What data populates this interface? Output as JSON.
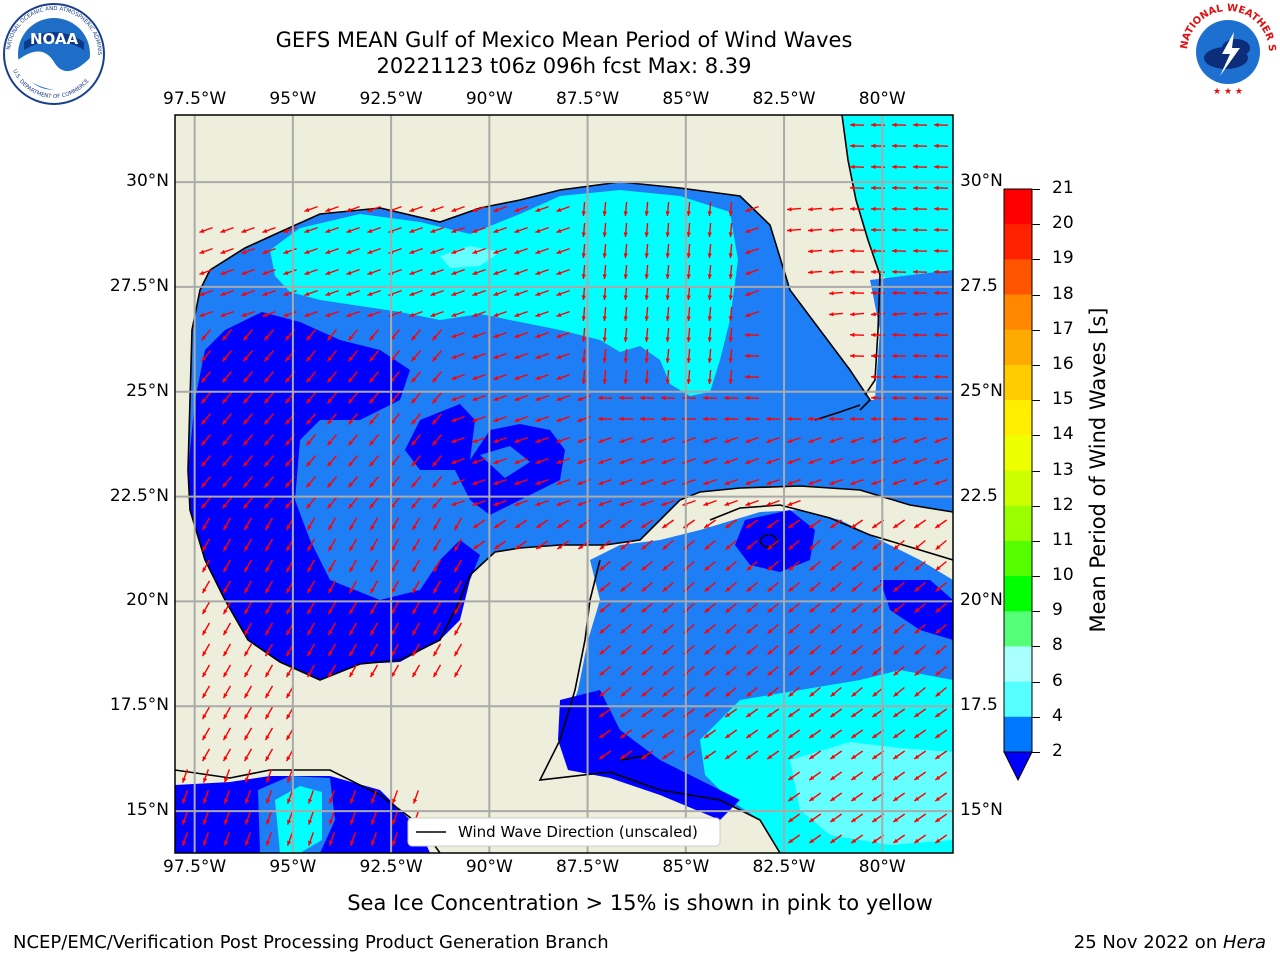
{
  "header": {
    "title_line1": "GEFS MEAN Gulf of Mexico Mean Period of Wind Waves",
    "title_line2": "20221123 t06z 096h fcst   Max: 8.39",
    "logo_left": "NOAA",
    "logo_left_ring": "NATIONAL OCEANIC AND ATMOSPHERIC ADMINISTRATION",
    "logo_left_ring_bottom": "U.S. DEPARTMENT OF COMMERCE",
    "logo_right_ring": "NATIONAL WEATHER SERVICE"
  },
  "map": {
    "lon_labels": [
      "97.5°W",
      "95°W",
      "92.5°W",
      "90°W",
      "87.5°W",
      "85°W",
      "82.5°W",
      "80°W"
    ],
    "lat_labels": [
      "30°N",
      "27.5°N",
      "25°N",
      "22.5°N",
      "20°N",
      "17.5°N",
      "15°N"
    ],
    "lat_labels_right": [
      "30°N",
      "27.5",
      "25°N",
      "22.5",
      "20°N",
      "17.5",
      "15°N"
    ],
    "lon_range": [
      -98,
      -78.2
    ],
    "lat_range": [
      14,
      31.6
    ],
    "legend_label": "Wind Wave Direction (unscaled)",
    "colors": {
      "land": "#eeeedc",
      "dark_blue": "#0000ff",
      "medium_blue": "#1e7ef6",
      "cyan": "#00ffff",
      "light_cyan": "#66ffff",
      "arrow": "#ff0000",
      "grid": "#aaaaaa"
    }
  },
  "colorbar": {
    "label": "Mean Period of Wind Waves [s]",
    "ticks": [
      "21",
      "20",
      "19",
      "18",
      "17",
      "16",
      "15",
      "14",
      "13",
      "12",
      "11",
      "10",
      "9",
      "8",
      "6",
      "4",
      "2"
    ],
    "colors": [
      "#ff0000",
      "#ff2200",
      "#ff5500",
      "#ff8800",
      "#ffaa00",
      "#ffcc00",
      "#ffee00",
      "#eeff00",
      "#ccff00",
      "#99ff00",
      "#55ff00",
      "#00ff00",
      "#55ff77",
      "#aaffff",
      "#55ffff",
      "#00ffff",
      "#0077ff"
    ],
    "extend_color": "#0000ff"
  },
  "footer": {
    "note": "Sea Ice Concentration > 15% is shown in pink to yellow",
    "credit": "NCEP/EMC/Verification Post Processing Product Generation Branch",
    "date": "25 Nov 2022 on ",
    "machine": "Hera"
  }
}
